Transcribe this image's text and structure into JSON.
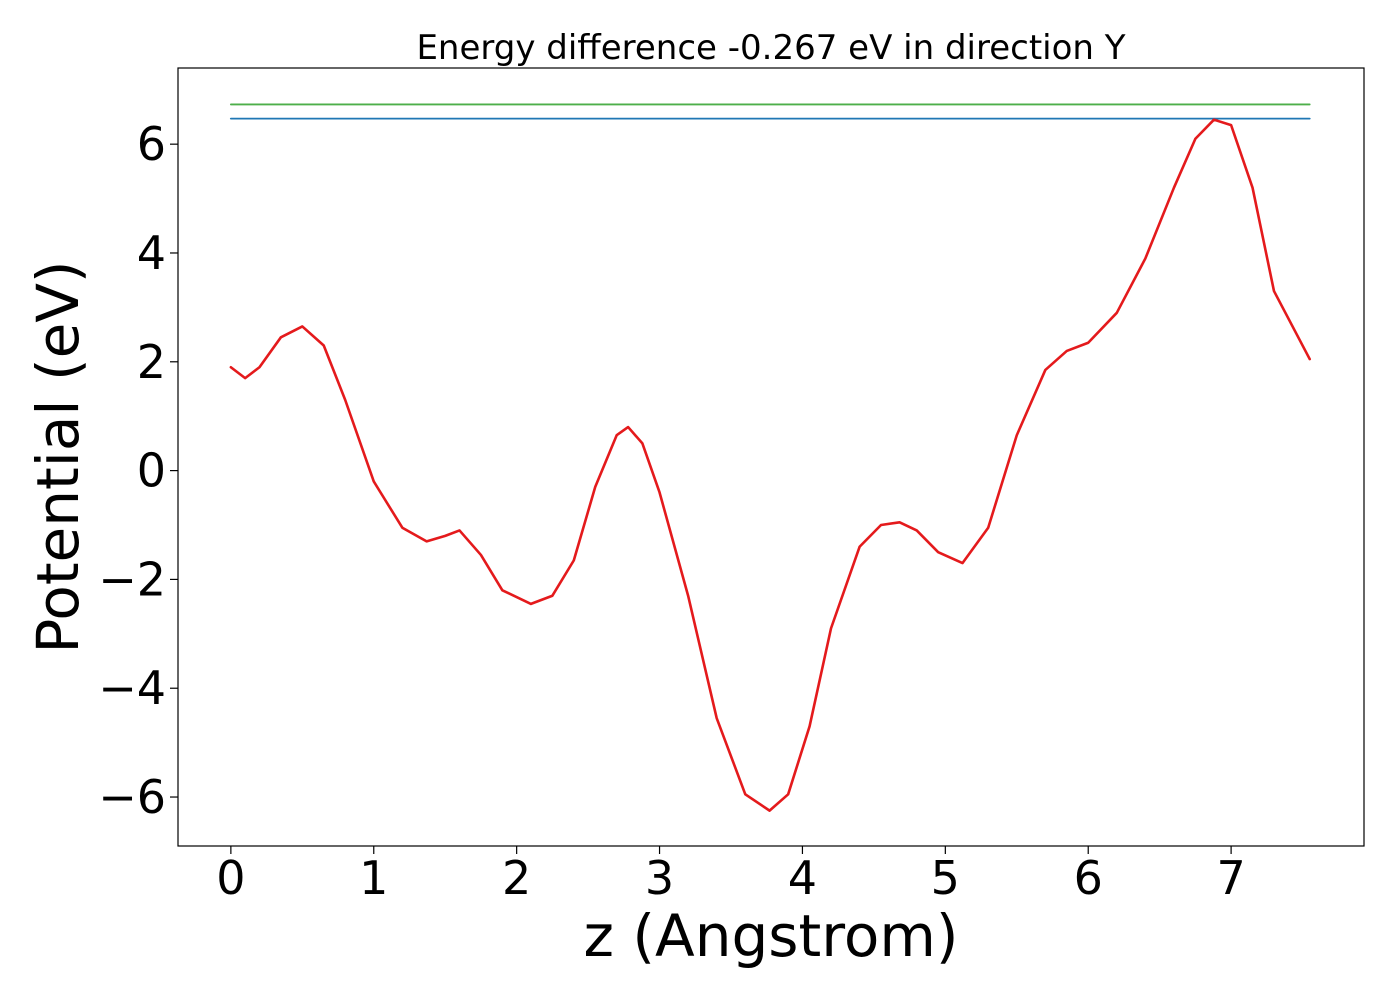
{
  "chart_data": {
    "type": "line",
    "title": "Energy difference -0.267 eV in direction Y",
    "xlabel": "z (Angstrom)",
    "ylabel": "Potential (eV)",
    "xlim": [
      -0.37,
      7.93
    ],
    "ylim": [
      -6.9,
      7.4
    ],
    "xticks": [
      0,
      1,
      2,
      3,
      4,
      5,
      6,
      7
    ],
    "xtick_labels": [
      "0",
      "1",
      "2",
      "3",
      "4",
      "5",
      "6",
      "7"
    ],
    "yticks": [
      -6,
      -4,
      -2,
      0,
      2,
      4,
      6
    ],
    "ytick_labels": [
      "−6",
      "−4",
      "−2",
      "0",
      "2",
      "4",
      "6"
    ],
    "grid": false,
    "series": [
      {
        "color": "#e41a1c",
        "x": [
          0,
          0.1,
          0.2,
          0.35,
          0.5,
          0.65,
          0.8,
          1.0,
          1.2,
          1.37,
          1.5,
          1.6,
          1.75,
          1.9,
          2.1,
          2.25,
          2.4,
          2.55,
          2.7,
          2.78,
          2.88,
          3.0,
          3.2,
          3.4,
          3.6,
          3.77,
          3.9,
          4.05,
          4.2,
          4.4,
          4.55,
          4.68,
          4.8,
          4.95,
          5.12,
          5.3,
          5.5,
          5.7,
          5.85,
          6.0,
          6.2,
          6.4,
          6.6,
          6.75,
          6.88,
          7.0,
          7.15,
          7.3,
          7.55
        ],
        "y": [
          1.9,
          1.7,
          1.9,
          2.45,
          2.65,
          2.3,
          1.3,
          -0.2,
          -1.05,
          -1.3,
          -1.2,
          -1.1,
          -1.55,
          -2.2,
          -2.45,
          -2.3,
          -1.65,
          -0.3,
          0.65,
          0.8,
          0.5,
          -0.4,
          -2.3,
          -4.55,
          -5.95,
          -6.25,
          -5.95,
          -4.7,
          -2.9,
          -1.4,
          -1.0,
          -0.95,
          -1.1,
          -1.5,
          -1.7,
          -1.05,
          0.65,
          1.85,
          2.2,
          2.35,
          2.9,
          3.9,
          5.2,
          6.1,
          6.45,
          6.35,
          5.2,
          3.3,
          2.05
        ]
      },
      {
        "color": "#1f77b4",
        "x": [
          0,
          7.55
        ],
        "y": [
          6.47,
          6.47
        ]
      },
      {
        "color": "#4daf4a",
        "x": [
          0,
          7.55
        ],
        "y": [
          6.73,
          6.73
        ]
      }
    ]
  }
}
